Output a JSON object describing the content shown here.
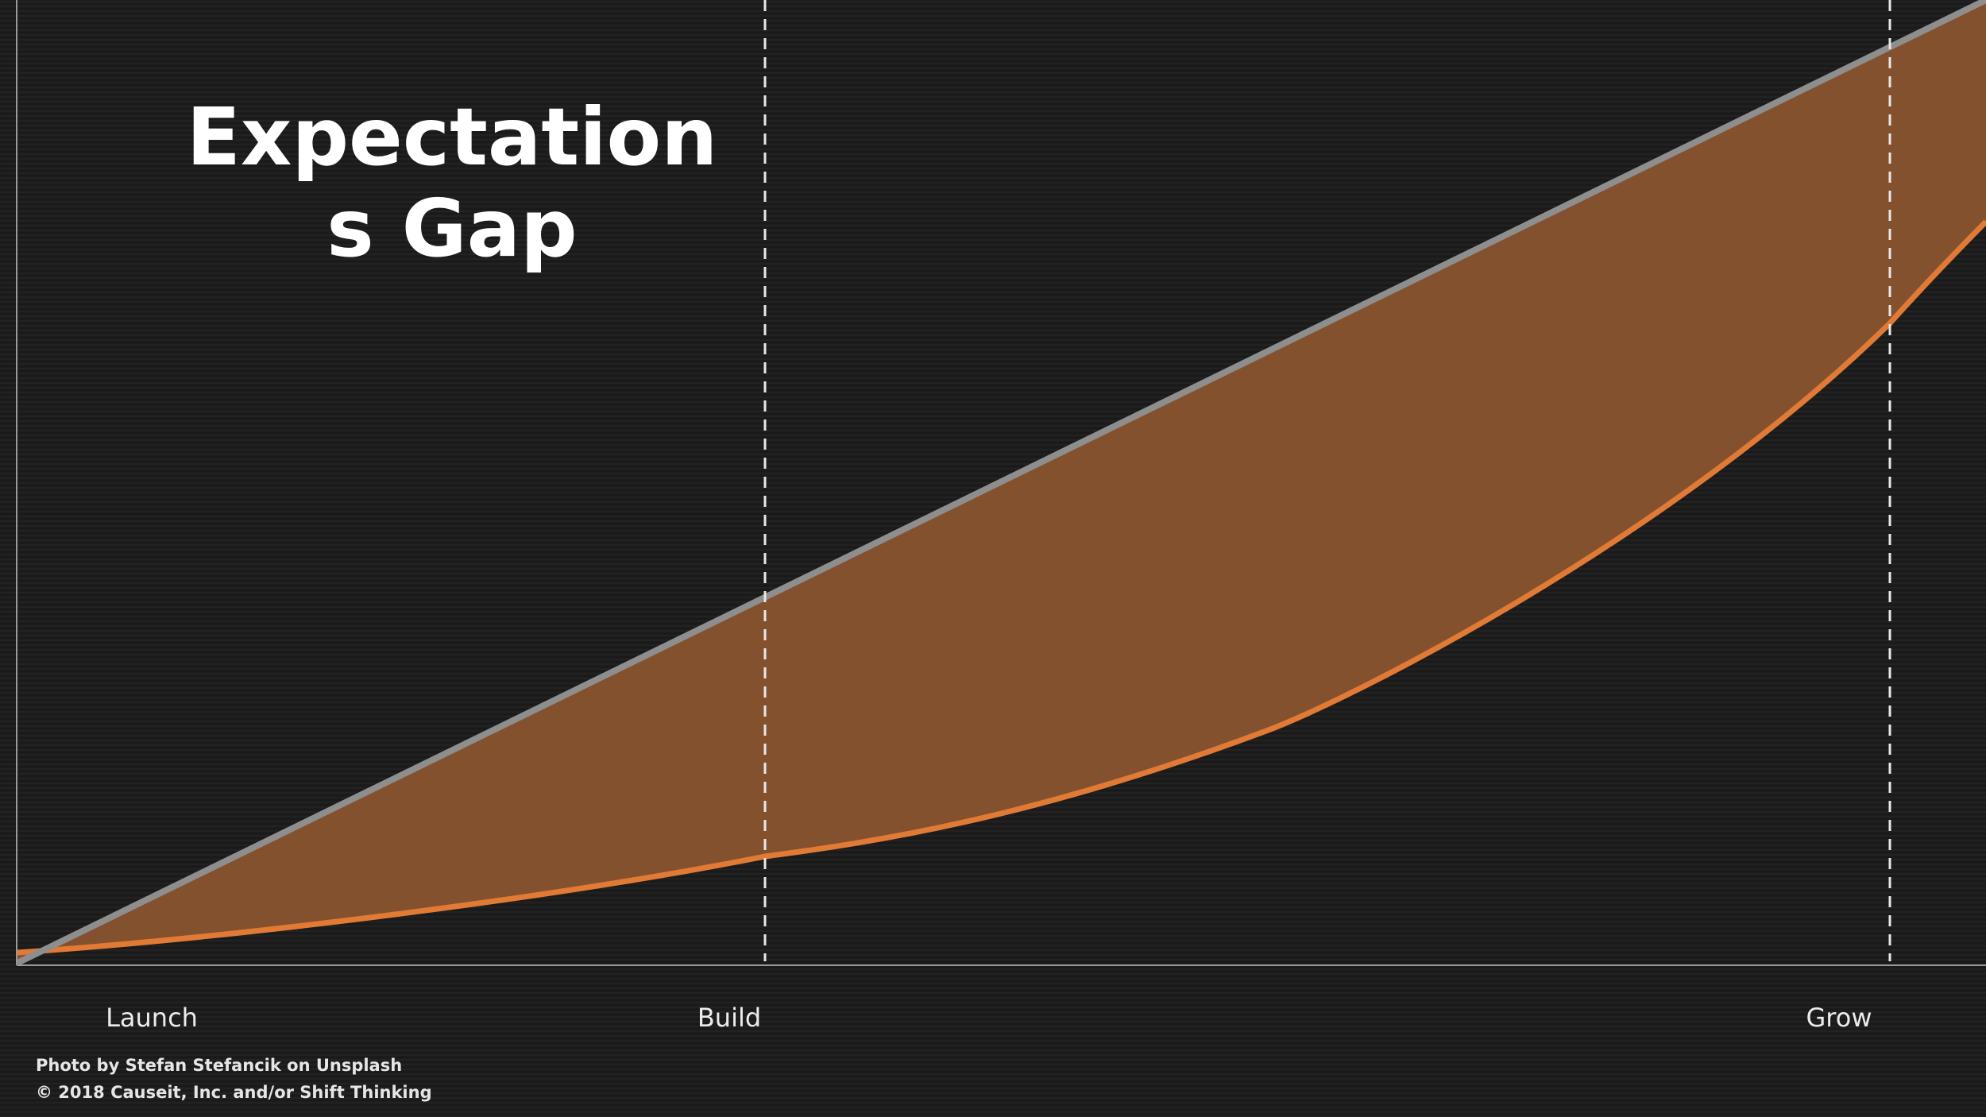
{
  "title": {
    "lines": [
      "Expectation",
      "s Gap"
    ]
  },
  "phases": [
    "Launch",
    "Build",
    "Grow"
  ],
  "credits": [
    "Photo by Stefan Stefancik on Unsplash",
    "© 2018 Causeit, Inc. and/or Shift Thinking"
  ]
}
